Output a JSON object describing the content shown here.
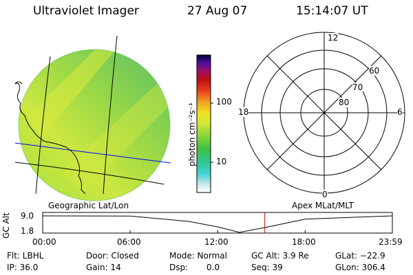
{
  "header": {
    "instrument": "Ultraviolet Imager",
    "date": "27 Aug 07",
    "time": "15:14:07 UT"
  },
  "colorbar": {
    "unit_label": "photon cm⁻²s⁻¹",
    "ticks": [
      "100",
      "10"
    ]
  },
  "polar": {
    "hour_labels": {
      "top": "12",
      "left": "18",
      "right": "6",
      "bottom": "0"
    },
    "lat_labels": [
      "60",
      "70",
      "80"
    ]
  },
  "panel_labels": {
    "left": "Geographic Lat/Lon",
    "right": "Apex MLat/MLT"
  },
  "altitude_plot": {
    "axis_title": "GC Alt",
    "y_ticks": [
      "9.0",
      "1.8"
    ],
    "x_ticks": [
      "00:00",
      "06:00",
      "12:00",
      "18:00",
      "23:59"
    ]
  },
  "footer": {
    "filter": "Flt: LBHL",
    "door": "Door: Closed",
    "mode": "Mode: Normal",
    "gc_alt": "GC Alt: 3.9 Re",
    "glat": "GLat: −22.9",
    "ip": "IP: 36.0",
    "gain": "Gain: 14",
    "dsp_label": "Dsp:",
    "dsp_value": "0.0",
    "seq": "Seq: 39",
    "glon": "GLon: 306.4"
  },
  "colors": {
    "grid_blue": "#0000ff",
    "marker_red": "#cc0000"
  },
  "chart_data": {
    "type": "line",
    "title": "",
    "xlabel": "",
    "ylabel": "GC Alt",
    "x_ticks": [
      "00:00",
      "06:00",
      "12:00",
      "18:00",
      "23:59"
    ],
    "y_ticks": [
      "9.0",
      "1.8"
    ],
    "ylim": [
      1.8,
      9.0
    ],
    "series": [
      {
        "x": [
          "00:00",
          "06:00",
          "10:00",
          "12:00",
          "13:30",
          "15:14",
          "18:00",
          "23:59"
        ],
        "values": [
          9.0,
          8.9,
          6.6,
          4.2,
          1.8,
          3.9,
          7.6,
          9.0
        ]
      }
    ],
    "current_time": "15:14"
  }
}
